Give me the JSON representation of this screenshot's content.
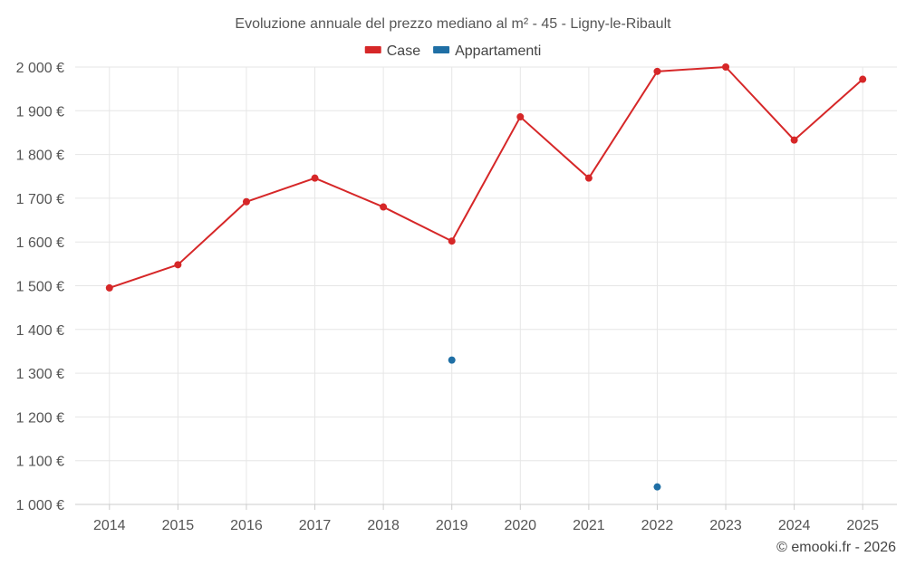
{
  "chart_data": {
    "type": "line",
    "title": "Evoluzione annuale del prezzo mediano al m² - 45 - Ligny-le-Ribault",
    "xlabel": "",
    "ylabel": "",
    "categories": [
      "2014",
      "2015",
      "2016",
      "2017",
      "2018",
      "2019",
      "2020",
      "2021",
      "2022",
      "2023",
      "2024",
      "2025"
    ],
    "ylim": [
      1000,
      2000
    ],
    "y_ticks": [
      1000,
      1100,
      1200,
      1300,
      1400,
      1500,
      1600,
      1700,
      1800,
      1900,
      2000
    ],
    "y_tick_labels": [
      "1 000 €",
      "1 100 €",
      "1 200 €",
      "1 300 €",
      "1 400 €",
      "1 500 €",
      "1 600 €",
      "1 700 €",
      "1 800 €",
      "1 900 €",
      "2 000 €"
    ],
    "grid": true,
    "legend_position": "top-center",
    "series": [
      {
        "name": "Case",
        "color": "#d62728",
        "values": [
          1495,
          1548,
          1692,
          1746,
          1680,
          1602,
          1886,
          1746,
          1990,
          2000,
          1833,
          1972
        ]
      },
      {
        "name": "Appartamenti",
        "color": "#1f6fa5",
        "values": [
          null,
          null,
          null,
          null,
          null,
          1330,
          null,
          null,
          1040,
          null,
          null,
          null
        ]
      }
    ]
  },
  "credit": "© emooki.fr - 2026"
}
